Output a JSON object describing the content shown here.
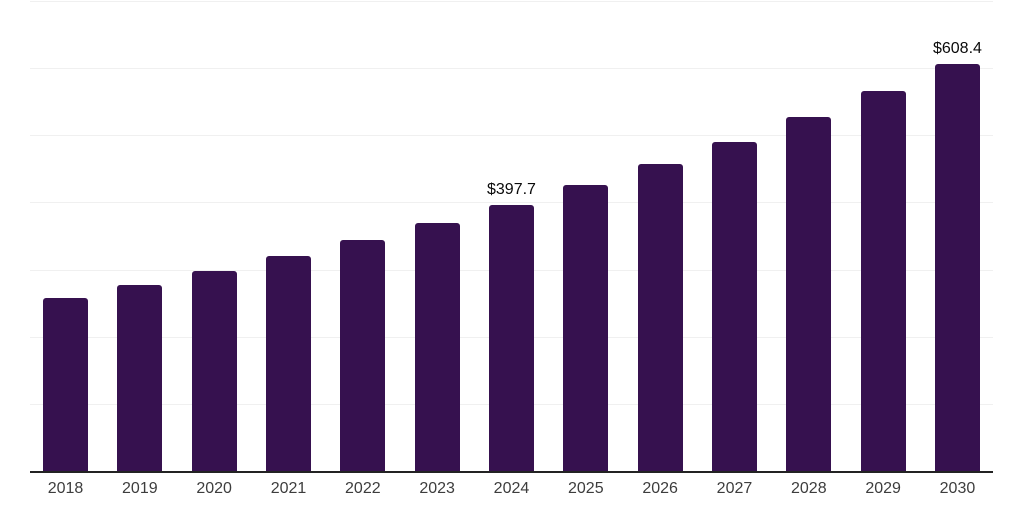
{
  "chart_data": {
    "type": "bar",
    "categories": [
      "2018",
      "2019",
      "2020",
      "2021",
      "2022",
      "2023",
      "2024",
      "2025",
      "2026",
      "2027",
      "2028",
      "2029",
      "2030"
    ],
    "values": [
      259.8,
      278.9,
      299.4,
      321.4,
      345.1,
      370.4,
      397.7,
      426.9,
      458.3,
      492.0,
      528.2,
      566.9,
      608.4
    ],
    "data_labels": {
      "2024": "$397.7",
      "2030": "$608.4"
    },
    "title": "",
    "xlabel": "",
    "ylabel": "",
    "ylim": [
      0,
      700
    ],
    "gridline_step": 100,
    "grid": "horizontal",
    "legend_position": "none",
    "y_tick_labels_visible": false,
    "colors": {
      "bar": "#36114F",
      "gridline": "#f0f0f0",
      "axis_line": "#232323",
      "x_tick_text": "#3d3d3d",
      "data_label_text": "#0a0a0a",
      "background": "#ffffff"
    }
  }
}
